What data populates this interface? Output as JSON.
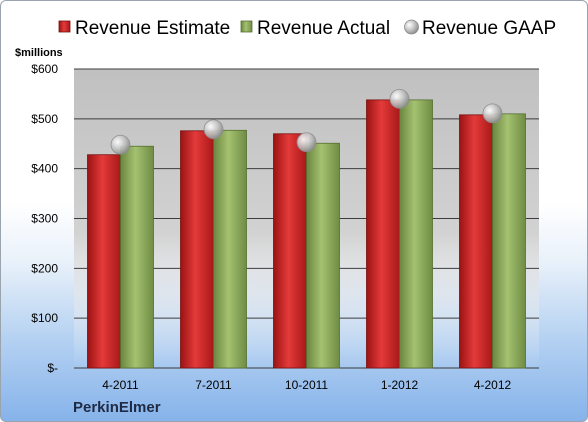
{
  "chart_data": {
    "type": "bar",
    "categories": [
      "4-2011",
      "7-2011",
      "10-2011",
      "1-2012",
      "4-2012"
    ],
    "series": [
      {
        "name": "Revenue Estimate",
        "kind": "bar",
        "color": "#d42a2a",
        "values": [
          428,
          476,
          470,
          538,
          508
        ]
      },
      {
        "name": "Revenue Actual",
        "kind": "bar",
        "color": "#8fae5c",
        "values": [
          445,
          477,
          451,
          538,
          510
        ]
      },
      {
        "name": "Revenue GAAP",
        "kind": "marker",
        "color": "#b9b9b9",
        "values": [
          448,
          479,
          453,
          540,
          511
        ]
      }
    ],
    "ylabel": "$millions",
    "ylim": [
      0,
      600
    ],
    "yticks": [
      0,
      100,
      200,
      300,
      400,
      500,
      600
    ],
    "ytick_labels": [
      "$-",
      "$100",
      "$200",
      "$300",
      "$400",
      "$500",
      "$600"
    ],
    "grid": true,
    "legend_position": "top"
  },
  "footer": {
    "company": "PerkinElmer"
  }
}
